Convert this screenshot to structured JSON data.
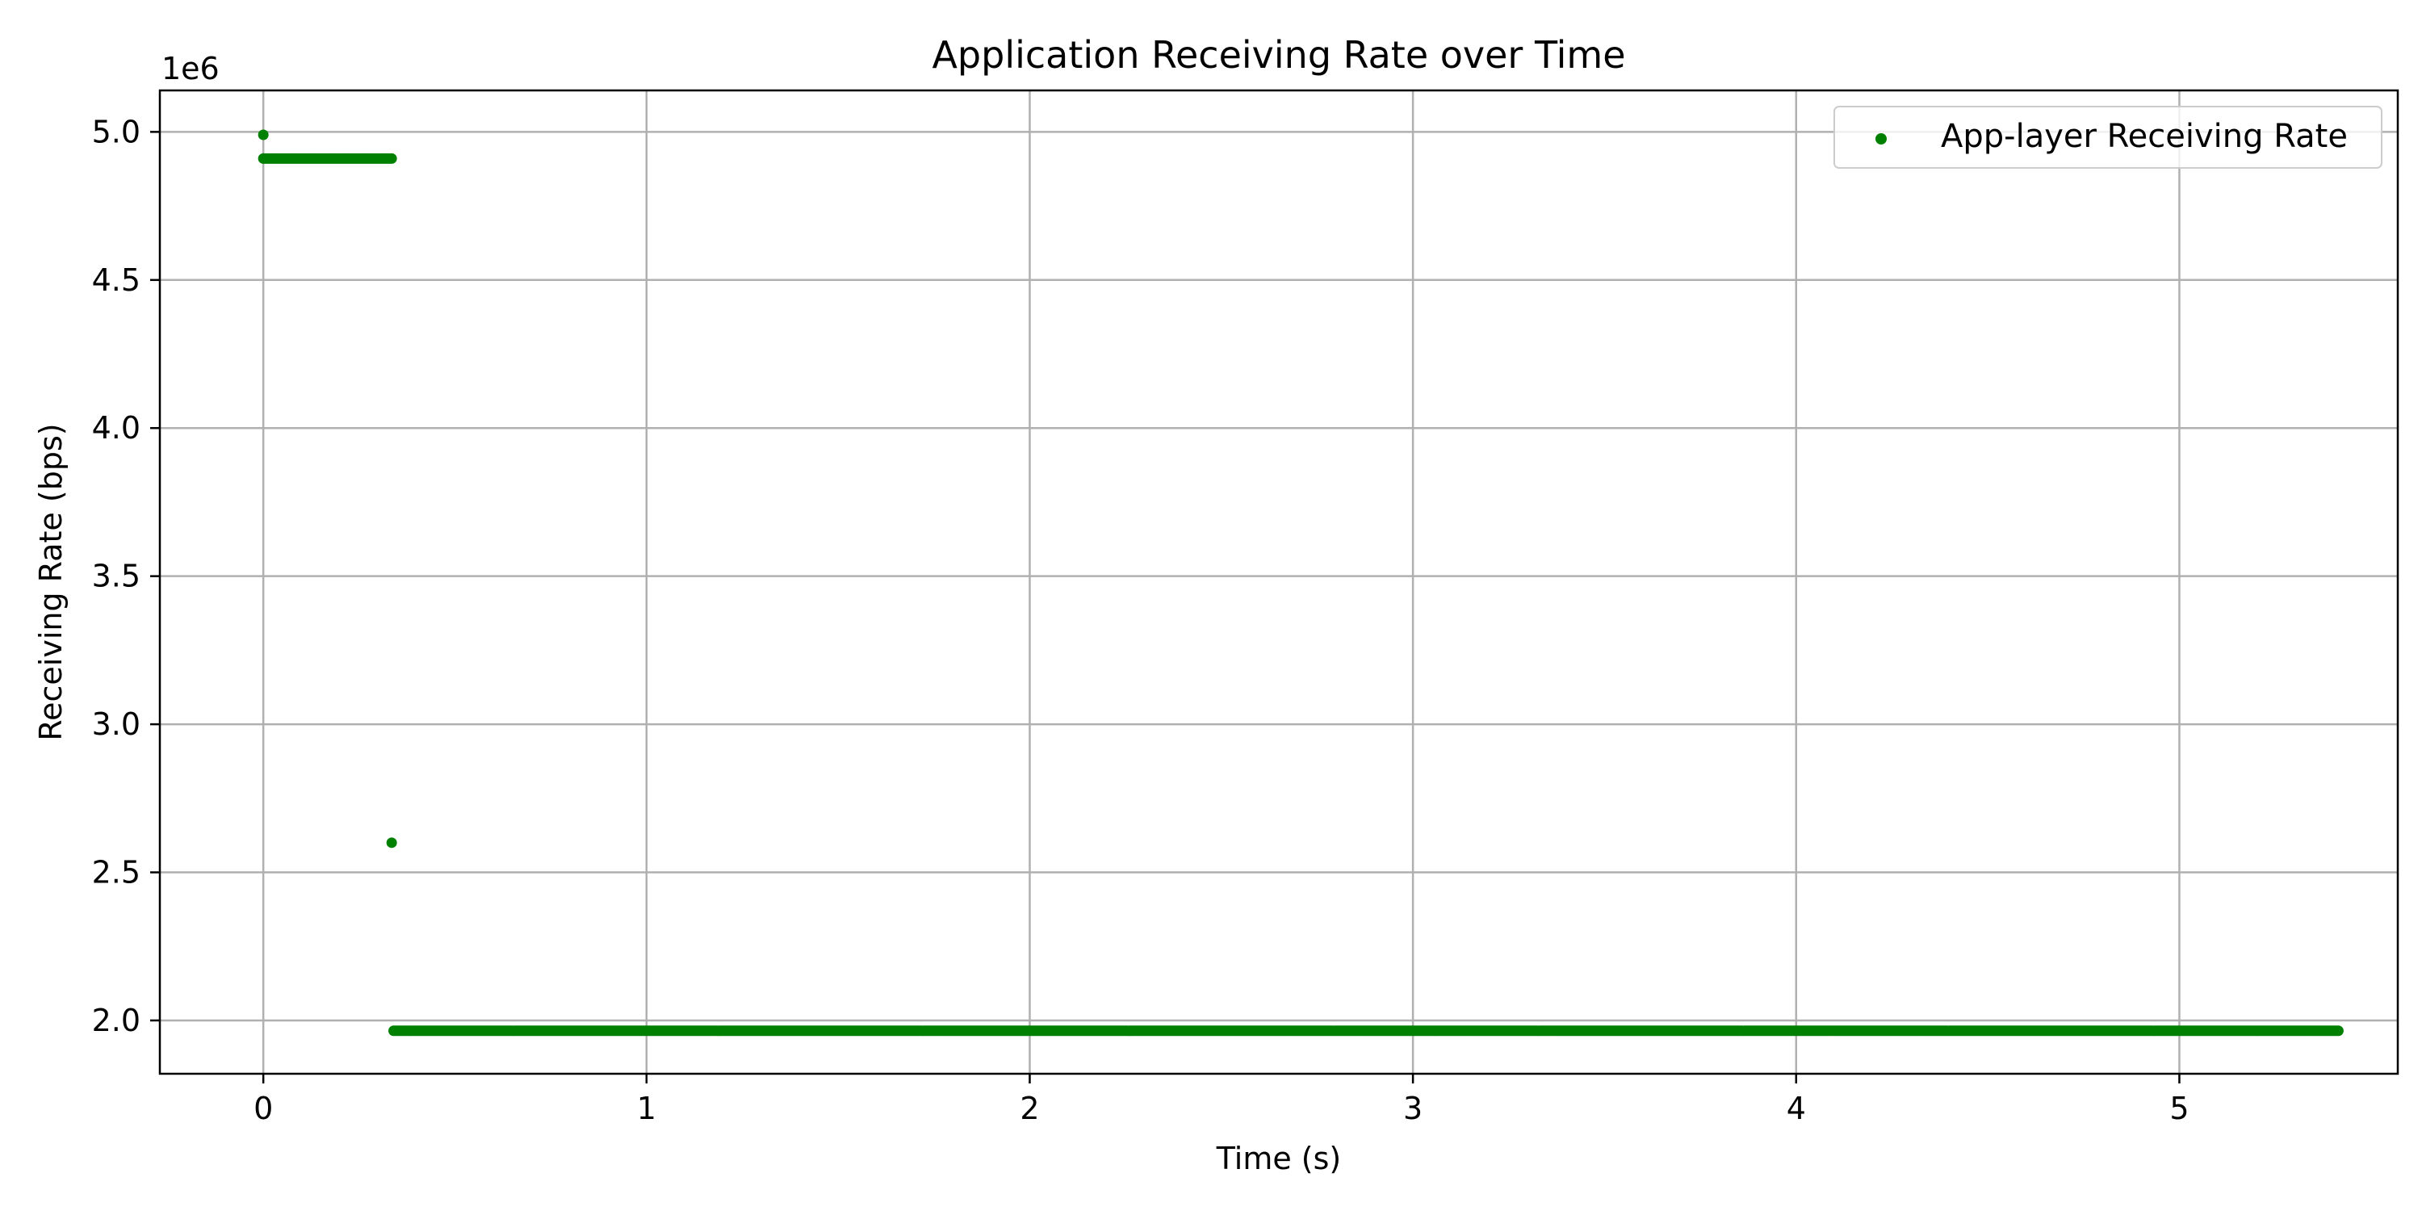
{
  "chart_data": {
    "type": "scatter",
    "title": "Application Receiving Rate over Time",
    "xlabel": "Time (s)",
    "ylabel": "Receiving Rate (bps)",
    "y_offset_label": "1e6",
    "xlim": [
      -0.27,
      5.57
    ],
    "ylim": [
      1.82,
      5.14
    ],
    "xticks": [
      0,
      1,
      2,
      3,
      4,
      5
    ],
    "xtick_labels": [
      "0",
      "1",
      "2",
      "3",
      "4",
      "5"
    ],
    "yticks": [
      2.0,
      2.5,
      3.0,
      3.5,
      4.0,
      4.5,
      5.0
    ],
    "ytick_labels": [
      "2.0",
      "2.5",
      "3.0",
      "3.5",
      "4.0",
      "4.5",
      "5.0"
    ],
    "grid": true,
    "legend": {
      "position": "top-right"
    },
    "series": [
      {
        "name": "App-layer Receiving Rate",
        "color": "#008000",
        "points": [
          [
            0.0,
            4.99
          ],
          [
            0.335,
            2.6
          ]
        ],
        "runs": [
          {
            "x_start": 0.0,
            "x_end": 0.335,
            "y": 4.91,
            "step": 0.005
          },
          {
            "x_start": 0.34,
            "x_end": 5.415,
            "y": 1.965,
            "step": 0.005
          }
        ]
      }
    ]
  }
}
